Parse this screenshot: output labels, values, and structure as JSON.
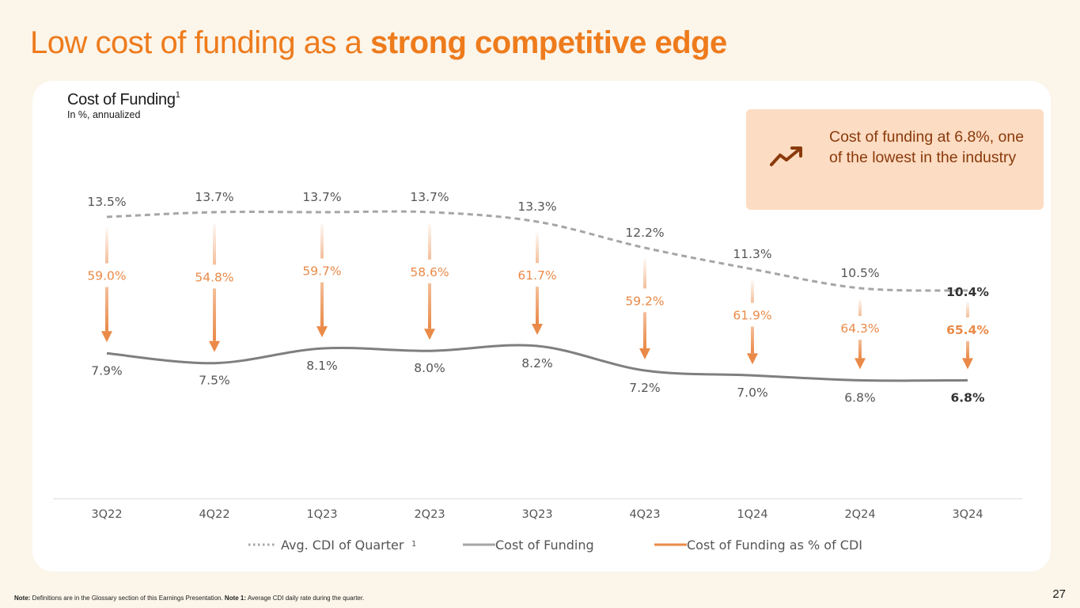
{
  "title": {
    "part1": "Low cost of funding as a ",
    "part2": "strong competitive edge"
  },
  "chart_card": {
    "title": "Cost of Funding",
    "title_sup": "1",
    "subtitle": "In %, annualized"
  },
  "callout": {
    "text": "Cost of funding at 6.8%, one of the lowest in the industry",
    "icon": "trending-up-icon"
  },
  "colors": {
    "title_orange": "#ee7b1c",
    "arrow_orange": "#ea8a48",
    "cof_line": "#7f7f7f",
    "cdi_line": "#a6a6a6",
    "callout_bg": "#fcdcc2",
    "callout_text": "#8a3a0c"
  },
  "chart_data": {
    "type": "line",
    "categories": [
      "3Q22",
      "4Q22",
      "1Q23",
      "2Q23",
      "3Q23",
      "4Q23",
      "1Q24",
      "2Q24",
      "3Q24"
    ],
    "series": [
      {
        "name": "Avg. CDI of Quarter",
        "name_sup": "1",
        "style": "dotted",
        "values": [
          13.5,
          13.7,
          13.7,
          13.7,
          13.3,
          12.2,
          11.3,
          10.5,
          10.4
        ],
        "labels": [
          "13.5%",
          "13.7%",
          "13.7%",
          "13.7%",
          "13.3%",
          "12.2%",
          "11.3%",
          "10.5%",
          "10.4%"
        ]
      },
      {
        "name": "Cost of Funding",
        "style": "solid",
        "values": [
          7.9,
          7.5,
          8.1,
          8.0,
          8.2,
          7.2,
          7.0,
          6.8,
          6.8
        ],
        "labels": [
          "7.9%",
          "7.5%",
          "8.1%",
          "8.0%",
          "8.2%",
          "7.2%",
          "7.0%",
          "6.8%",
          "6.8%"
        ]
      },
      {
        "name": "Cost of Funding as % of CDI",
        "style": "arrow",
        "values": [
          59.0,
          54.8,
          59.7,
          58.6,
          61.7,
          59.2,
          61.9,
          64.3,
          65.4
        ],
        "labels": [
          "59.0%",
          "54.8%",
          "59.7%",
          "58.6%",
          "61.7%",
          "59.2%",
          "61.9%",
          "64.3%",
          "65.4%"
        ]
      }
    ],
    "highlight_last": true
  },
  "footnote": {
    "note_label": "Note:",
    "note_text": " Definitions are in the Glossary section of this Earnings Presentation. ",
    "note1_label": "Note 1:",
    "note1_text": " Average CDI daily rate during the quarter."
  },
  "page_number": "27"
}
